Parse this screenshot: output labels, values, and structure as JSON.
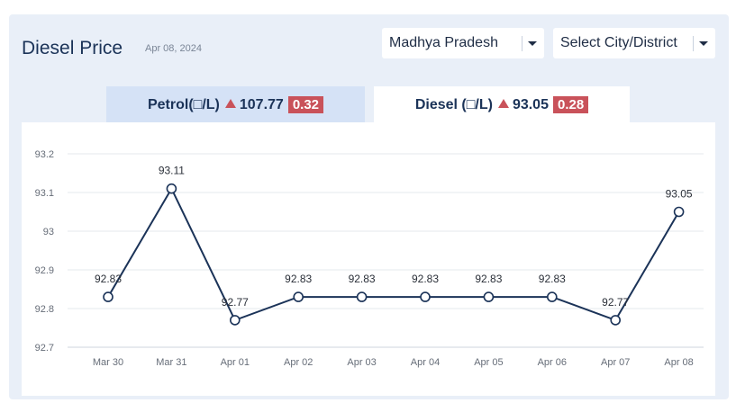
{
  "header": {
    "title": "Diesel Price",
    "date": "Apr 08, 2024"
  },
  "state_select": {
    "value": "Madhya Pradesh"
  },
  "city_select": {
    "value": "Select City/District"
  },
  "tabs": [
    {
      "label": "Petrol(□/L)",
      "price": "107.77",
      "change": "0.32",
      "active": false
    },
    {
      "label": "Diesel (□/L)",
      "price": "93.05",
      "change": "0.28",
      "active": true
    }
  ],
  "colors": {
    "accent": "#1b3358",
    "up": "#c9525a",
    "panel": "#e9eff8",
    "tab_inactive": "#d5e2f6"
  },
  "icons": {
    "dropdown": "chevron-down-icon",
    "change": "triangle-up-icon"
  },
  "chart_data": {
    "type": "line",
    "categories": [
      "Mar 30",
      "Mar 31",
      "Apr 01",
      "Apr 02",
      "Apr 03",
      "Apr 04",
      "Apr 05",
      "Apr 06",
      "Apr 07",
      "Apr 08"
    ],
    "values": [
      92.83,
      93.11,
      92.77,
      92.83,
      92.83,
      92.83,
      92.83,
      92.83,
      92.77,
      93.05
    ],
    "data_labels": [
      "92.83",
      "93.11",
      "92.77",
      "92.83",
      "92.83",
      "92.83",
      "92.83",
      "92.83",
      "92.77",
      "93.05"
    ],
    "y_ticks": [
      "92.7",
      "92.8",
      "92.9",
      "93",
      "93.1",
      "93.2"
    ],
    "ylim": [
      92.7,
      93.2
    ],
    "grid": true,
    "legend": "none"
  }
}
